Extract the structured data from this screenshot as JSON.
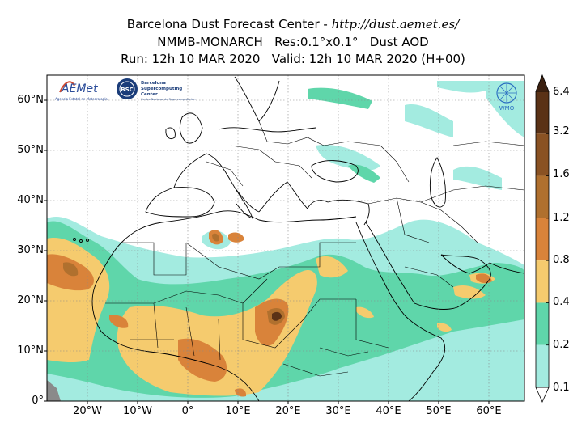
{
  "title": {
    "line1_prefix": "Barcelona Dust Forecast Center - ",
    "line1_url": "http://dust.aemet.es/",
    "line2": "NMMB-MONARCH   Res:0.1°x0.1°   Dust AOD",
    "line3": "Run: 12h 10 MAR 2020   Valid: 12h 10 MAR 2020 (H+00)"
  },
  "axes": {
    "lat_ticks": [
      "60°N",
      "50°N",
      "40°N",
      "30°N",
      "20°N",
      "10°N",
      "0°"
    ],
    "lon_ticks": [
      "20°W",
      "10°W",
      "0°",
      "10°E",
      "20°E",
      "30°E",
      "40°E",
      "50°E",
      "60°E"
    ]
  },
  "colorbar": {
    "labels": [
      "6.4",
      "3.2",
      "1.6",
      "1.2",
      "0.8",
      "0.4",
      "0.2",
      "0.1"
    ],
    "colors": [
      "#3b2010",
      "#5a3216",
      "#8a5223",
      "#b0702e",
      "#d9833a",
      "#f5cb6e",
      "#5fd6aa",
      "#a3ebe0",
      "#ffffff"
    ]
  },
  "logos": {
    "aemet": "AEMet",
    "aemet_sub": "Agencia Estatal de Meteorología",
    "bsc_badge": "BSC",
    "bsc_name1": "Barcelona",
    "bsc_name2": "Supercomputing",
    "bsc_name3": "Center",
    "bsc_sub": "Centro Nacional de Supercomputación",
    "wmo": "WMO"
  },
  "colors": {
    "low": "#a3ebe0",
    "medium": "#5fd6aa",
    "moderate": "#f5cb6e",
    "high": "#d9833a",
    "very_high": "#b0702e",
    "extreme": "#5a3216"
  }
}
